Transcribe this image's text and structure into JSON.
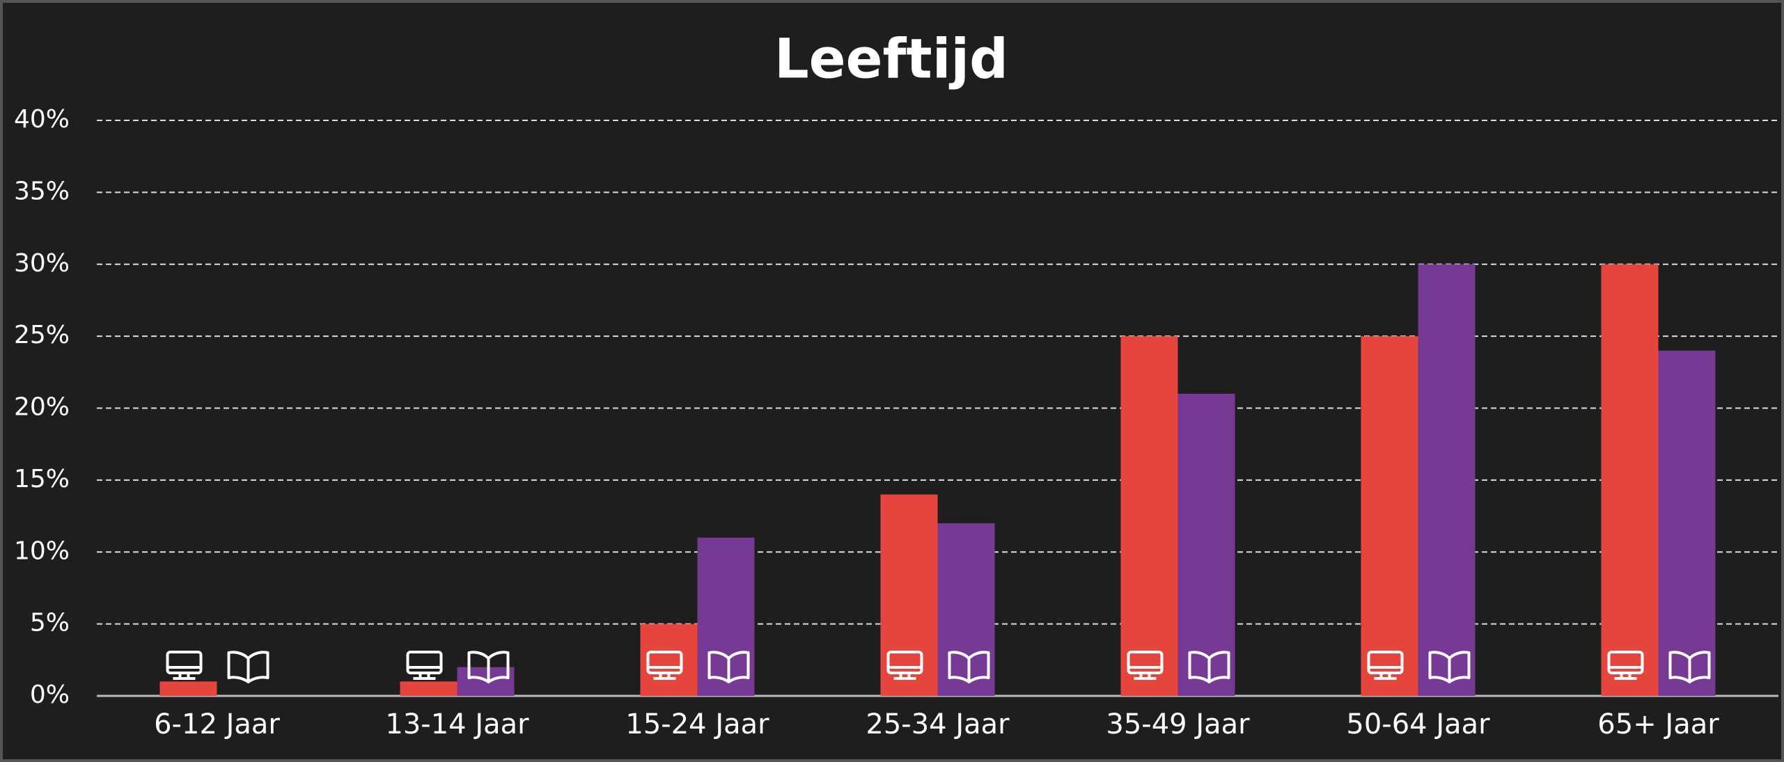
{
  "chart_data": {
    "type": "bar",
    "title": "Leeftijd",
    "categories": [
      "6-12 Jaar",
      "13-14 Jaar",
      "15-24 Jaar",
      "25-34 Jaar",
      "35-49 Jaar",
      "50-64 Jaar",
      "65+ Jaar"
    ],
    "series": [
      {
        "color": "#e5453d",
        "values": [
          1,
          1,
          5,
          14,
          25,
          25,
          30
        ]
      },
      {
        "color": "#773a94",
        "values": [
          0,
          2,
          11,
          12,
          21,
          30,
          24
        ]
      }
    ],
    "ylim": [
      0,
      40
    ],
    "yticks": [
      {
        "value": 0,
        "label": "0%"
      },
      {
        "value": 5,
        "label": "5%"
      },
      {
        "value": 10,
        "label": "10%"
      },
      {
        "value": 15,
        "label": "15%"
      },
      {
        "value": 20,
        "label": "20%"
      },
      {
        "value": 25,
        "label": "25%"
      },
      {
        "value": 30,
        "label": "30%"
      },
      {
        "value": 35,
        "label": "35%"
      },
      {
        "value": 40,
        "label": "40%"
      }
    ],
    "grid": true
  }
}
